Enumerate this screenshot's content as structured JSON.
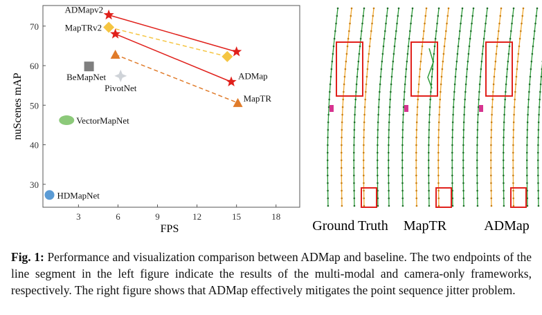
{
  "chart_data": {
    "type": "scatter",
    "xlabel": "FPS",
    "ylabel": "nuScenes mAP",
    "xlim": [
      0.3,
      19.8
    ],
    "ylim": [
      24.2,
      75.2
    ],
    "xticks": [
      3,
      6,
      9,
      12,
      15,
      18
    ],
    "yticks": [
      30,
      40,
      50,
      60,
      70
    ],
    "series": [
      {
        "name": "ADMapv2",
        "color": "#e0201b",
        "marker": "star",
        "line": "solid",
        "x": [
          5.3,
          15.0
        ],
        "y": [
          72.8,
          63.5
        ]
      },
      {
        "name": "MapTRv2",
        "color": "#f5c542",
        "marker": "diamond",
        "line": "dashed",
        "x": [
          5.3,
          14.3
        ],
        "y": [
          69.7,
          62.3
        ]
      },
      {
        "name": "ADMap",
        "color": "#e0201b",
        "marker": "star",
        "line": "solid",
        "x": [
          5.8,
          14.6
        ],
        "y": [
          68.0,
          55.9
        ]
      },
      {
        "name": "MapTR",
        "color": "#e07b2a",
        "marker": "triangle",
        "line": "dashed",
        "x": [
          5.8,
          15.1
        ],
        "y": [
          62.8,
          50.6
        ]
      },
      {
        "name": "BeMapNet",
        "color": "#7f7f7f",
        "marker": "square",
        "x": [
          3.8
        ],
        "y": [
          59.8
        ]
      },
      {
        "name": "PivotNet",
        "color": "#cfd3d8",
        "marker": "cross4",
        "x": [
          6.2
        ],
        "y": [
          57.4
        ]
      },
      {
        "name": "VectorMapNet",
        "color": "#8cc97a",
        "marker": "ellipse",
        "x": [
          2.1
        ],
        "y": [
          46.2
        ]
      },
      {
        "name": "HDMapNet",
        "color": "#5b9bd5",
        "marker": "circle",
        "x": [
          0.8
        ],
        "y": [
          27.3
        ]
      }
    ]
  },
  "panels": [
    "Ground Truth",
    "MapTR",
    "ADMap"
  ],
  "caption": {
    "label": "Fig. 1:",
    "text": "Performance and visualization comparison between ADMap and baseline. The two endpoints of the line segment in the left figure indicate the results of the multi-modal and camera-only frameworks, respectively. The right figure shows that ADMap effectively mitigates the point sequence jitter problem."
  }
}
